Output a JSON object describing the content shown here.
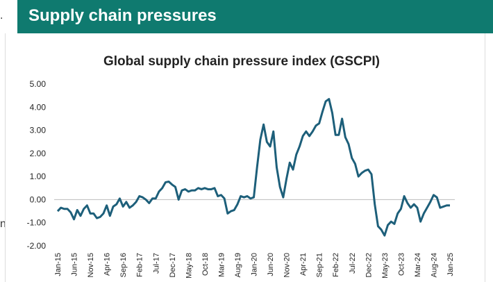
{
  "header": {
    "title": "Supply chain pressures"
  },
  "edge_fragments": [
    ".",
    "n"
  ],
  "chart_data": {
    "type": "line",
    "title": "Global supply chain pressure index (GSCPI)",
    "categories": [
      "Jan-15",
      null,
      null,
      null,
      null,
      "Jun-15",
      null,
      null,
      null,
      null,
      "Nov-15",
      null,
      null,
      null,
      null,
      "Apr-16",
      null,
      null,
      null,
      null,
      "Sep-16",
      null,
      null,
      null,
      null,
      "Feb-17",
      null,
      null,
      null,
      null,
      "Jul-17",
      null,
      null,
      null,
      null,
      "Dec-17",
      null,
      null,
      null,
      null,
      "May-18",
      null,
      null,
      null,
      null,
      "Oct-18",
      null,
      null,
      null,
      null,
      "Mar-19",
      null,
      null,
      null,
      null,
      "Aug-19",
      null,
      null,
      null,
      null,
      "Jan-20",
      null,
      null,
      null,
      null,
      "Jun-20",
      null,
      null,
      null,
      null,
      "Nov-20",
      null,
      null,
      null,
      null,
      "Apr-21",
      null,
      null,
      null,
      null,
      "Sep-21",
      null,
      null,
      null,
      null,
      "Feb-22",
      null,
      null,
      null,
      null,
      "Jul-22",
      null,
      null,
      null,
      null,
      "Dec-22",
      null,
      null,
      null,
      null,
      "May-23",
      null,
      null,
      null,
      null,
      "Oct-23",
      null,
      null,
      null,
      null,
      "Mar-24",
      null,
      null,
      null,
      null,
      "Aug-24",
      null,
      null,
      null,
      null,
      "Jan-25"
    ],
    "series": [
      {
        "name": "GSCPI",
        "color": "#1d5f7a",
        "values": [
          -0.5,
          -0.35,
          -0.4,
          -0.4,
          -0.55,
          -0.85,
          -0.45,
          -0.7,
          -0.4,
          -0.25,
          -0.6,
          -0.6,
          -0.8,
          -0.75,
          -0.6,
          -0.25,
          -0.7,
          -0.3,
          -0.2,
          0.05,
          -0.3,
          -0.1,
          -0.35,
          -0.25,
          -0.1,
          0.15,
          0.1,
          0.0,
          -0.15,
          0.05,
          0.05,
          0.35,
          0.5,
          0.75,
          0.78,
          0.65,
          0.55,
          0.0,
          0.4,
          0.45,
          0.35,
          0.4,
          0.4,
          0.5,
          0.45,
          0.5,
          0.45,
          0.45,
          0.5,
          0.15,
          0.2,
          0.05,
          -0.6,
          -0.5,
          -0.45,
          -0.2,
          0.15,
          0.1,
          0.15,
          0.05,
          0.1,
          1.4,
          2.6,
          3.25,
          2.5,
          2.3,
          2.95,
          1.4,
          0.55,
          0.1,
          0.9,
          1.6,
          1.3,
          1.95,
          2.3,
          2.75,
          2.95,
          2.75,
          2.95,
          3.2,
          3.3,
          3.8,
          4.25,
          4.35,
          3.75,
          2.8,
          2.8,
          3.5,
          2.7,
          2.4,
          1.8,
          1.55,
          1.0,
          1.15,
          1.25,
          1.3,
          1.1,
          -0.2,
          -1.15,
          -1.3,
          -1.55,
          -1.1,
          -0.95,
          -1.05,
          -0.6,
          -0.4,
          0.15,
          -0.15,
          -0.35,
          -0.2,
          -0.35,
          -0.95,
          -0.6,
          -0.35,
          -0.1,
          0.2,
          0.1,
          -0.35,
          -0.3,
          -0.25,
          -0.25
        ]
      }
    ],
    "ylim": [
      -2,
      5
    ],
    "yticks": [
      {
        "value": -2,
        "label": "-2.00"
      },
      {
        "value": -1,
        "label": "-1.00"
      },
      {
        "value": 0,
        "label": "0.00"
      },
      {
        "value": 1,
        "label": "1.00"
      },
      {
        "value": 2,
        "label": "2.00"
      },
      {
        "value": 3,
        "label": "3.00"
      },
      {
        "value": 4,
        "label": "4.00"
      },
      {
        "value": 5,
        "label": "5.00"
      }
    ],
    "grid": false,
    "legend": false
  }
}
